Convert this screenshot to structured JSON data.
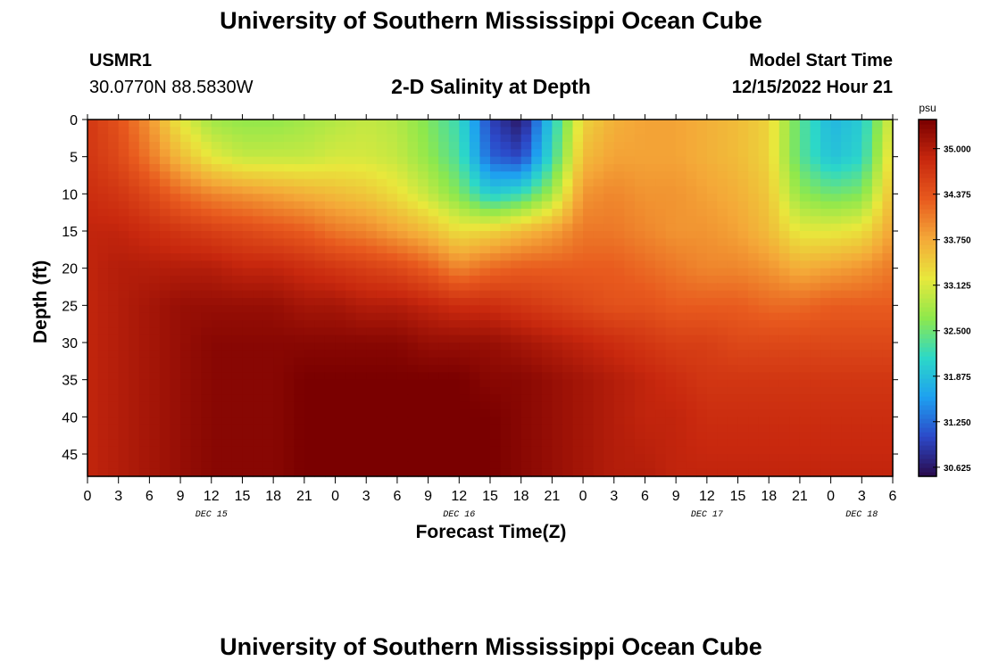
{
  "header": {
    "title": "University of Southern Mississippi Ocean Cube",
    "station": "USMR1",
    "coords": "30.0770N  88.5830W",
    "chart_title": "2-D Salinity at Depth",
    "model_start_label": "Model Start Time",
    "model_start_value": "12/15/2022 Hour 21"
  },
  "footer": {
    "title": "University of Southern Mississippi Ocean Cube"
  },
  "chart_data": {
    "type": "heatmap",
    "title": "2-D Salinity at Depth",
    "xlabel": "Forecast Time(Z)",
    "ylabel": "Depth (ft)",
    "x_hours_range": [
      0,
      78
    ],
    "y_range": [
      0,
      48
    ],
    "y_ticks": [
      0,
      5,
      10,
      15,
      20,
      25,
      30,
      35,
      40,
      45
    ],
    "x_tick_labels": [
      "0",
      "3",
      "6",
      "9",
      "12",
      "15",
      "18",
      "21",
      "0",
      "3",
      "6",
      "9",
      "12",
      "15",
      "18",
      "21",
      "0",
      "3",
      "6",
      "9",
      "12",
      "15",
      "18",
      "21",
      "0",
      "3",
      "6"
    ],
    "date_labels": [
      "DEC 15",
      "DEC 16",
      "DEC 17",
      "DEC 18"
    ],
    "colorbar": {
      "unit": "psu",
      "range": [
        30.5,
        35.4
      ],
      "ticks": [
        "35.000",
        "34.375",
        "33.750",
        "33.125",
        "32.500",
        "31.875",
        "31.250",
        "30.625"
      ],
      "tick_values": [
        35.0,
        34.375,
        33.75,
        33.125,
        32.5,
        31.875,
        31.25,
        30.625
      ]
    },
    "colormap": [
      "#2a0a4a",
      "#2c48c8",
      "#1ea0f0",
      "#2cd8c8",
      "#8ee84c",
      "#e8e83c",
      "#f4a838",
      "#e85a1e",
      "#c8280e",
      "#7a0000"
    ],
    "grid_depths": [
      0,
      5,
      10,
      15,
      20,
      25,
      30,
      35,
      40,
      48
    ],
    "grid_hours": [
      0,
      3,
      6,
      9,
      12,
      15,
      18,
      21,
      24,
      27,
      30,
      33,
      36,
      39,
      42,
      45,
      48,
      51,
      54,
      57,
      60,
      63,
      66,
      69,
      72,
      75,
      78
    ],
    "salinity_grid": [
      [
        34.7,
        34.4,
        33.9,
        33.2,
        32.8,
        32.7,
        32.7,
        32.8,
        32.9,
        33.0,
        32.9,
        32.6,
        32.2,
        31.0,
        30.6,
        32.0,
        33.4,
        33.7,
        33.8,
        33.8,
        33.7,
        33.6,
        33.4,
        32.4,
        31.8,
        32.0,
        33.2
      ],
      [
        34.7,
        34.5,
        34.1,
        33.6,
        33.2,
        33.0,
        33.0,
        33.0,
        33.1,
        33.1,
        33.0,
        32.7,
        32.3,
        31.2,
        31.0,
        32.2,
        33.6,
        33.8,
        33.8,
        33.8,
        33.7,
        33.6,
        33.4,
        32.4,
        31.9,
        32.1,
        33.4
      ],
      [
        34.8,
        34.7,
        34.5,
        34.2,
        34.0,
        33.9,
        33.8,
        33.7,
        33.6,
        33.5,
        33.3,
        33.0,
        32.6,
        32.0,
        32.2,
        32.8,
        33.9,
        34.0,
        33.9,
        33.9,
        33.8,
        33.7,
        33.5,
        32.7,
        32.5,
        32.6,
        33.6
      ],
      [
        34.9,
        34.9,
        34.8,
        34.7,
        34.6,
        34.5,
        34.4,
        34.3,
        34.1,
        34.0,
        33.8,
        33.6,
        33.3,
        33.4,
        33.6,
        33.8,
        34.1,
        34.1,
        34.0,
        33.9,
        33.9,
        33.8,
        33.6,
        33.2,
        33.2,
        33.3,
        33.8
      ],
      [
        34.9,
        35.0,
        35.0,
        35.0,
        35.0,
        34.9,
        34.9,
        34.8,
        34.7,
        34.6,
        34.5,
        34.3,
        34.0,
        34.2,
        34.3,
        34.3,
        34.3,
        34.3,
        34.2,
        34.1,
        34.0,
        34.0,
        33.9,
        33.7,
        33.8,
        33.9,
        34.1
      ],
      [
        34.9,
        35.0,
        35.1,
        35.2,
        35.2,
        35.2,
        35.2,
        35.1,
        35.1,
        35.0,
        35.0,
        34.9,
        34.8,
        34.8,
        34.7,
        34.6,
        34.5,
        34.4,
        34.4,
        34.3,
        34.3,
        34.3,
        34.2,
        34.2,
        34.3,
        34.3,
        34.3
      ],
      [
        34.9,
        35.0,
        35.1,
        35.2,
        35.3,
        35.3,
        35.3,
        35.3,
        35.3,
        35.3,
        35.3,
        35.2,
        35.2,
        35.2,
        35.1,
        35.0,
        34.9,
        34.8,
        34.7,
        34.6,
        34.6,
        34.5,
        34.5,
        34.5,
        34.5,
        34.5,
        34.5
      ],
      [
        34.9,
        35.0,
        35.1,
        35.2,
        35.3,
        35.3,
        35.3,
        35.4,
        35.4,
        35.4,
        35.4,
        35.4,
        35.4,
        35.3,
        35.3,
        35.2,
        35.1,
        35.0,
        34.9,
        34.8,
        34.7,
        34.7,
        34.7,
        34.7,
        34.7,
        34.7,
        34.7
      ],
      [
        34.9,
        35.0,
        35.1,
        35.2,
        35.3,
        35.3,
        35.3,
        35.4,
        35.4,
        35.4,
        35.4,
        35.4,
        35.4,
        35.4,
        35.3,
        35.2,
        35.1,
        35.0,
        34.9,
        34.9,
        34.8,
        34.8,
        34.8,
        34.8,
        34.8,
        34.8,
        34.8
      ],
      [
        34.9,
        35.0,
        35.1,
        35.2,
        35.3,
        35.3,
        35.3,
        35.4,
        35.4,
        35.4,
        35.4,
        35.4,
        35.4,
        35.4,
        35.3,
        35.2,
        35.1,
        35.0,
        35.0,
        34.9,
        34.9,
        34.9,
        34.9,
        34.9,
        34.9,
        34.9,
        34.9
      ]
    ]
  }
}
